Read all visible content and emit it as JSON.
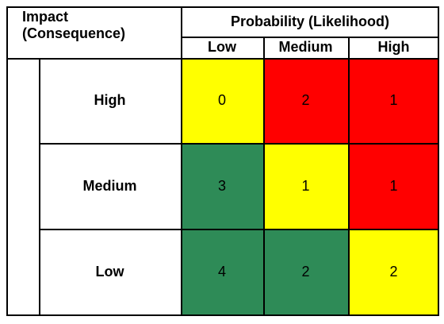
{
  "header": {
    "impact_label": "Impact\n(Consequence)",
    "probability_label": "Probability (Likelihood)",
    "columns": [
      "Low",
      "Medium",
      "High"
    ]
  },
  "rows": [
    {
      "label": "High",
      "values": [
        "0",
        "2",
        "1"
      ],
      "colors": [
        "#ffff00",
        "#ff0000",
        "#ff0000"
      ]
    },
    {
      "label": "Medium",
      "values": [
        "3",
        "1",
        "1"
      ],
      "colors": [
        "#2e8b57",
        "#ffff00",
        "#ff0000"
      ]
    },
    {
      "label": "Low",
      "values": [
        "4",
        "2",
        "2"
      ],
      "colors": [
        "#2e8b57",
        "#2e8b57",
        "#ffff00"
      ]
    }
  ]
}
